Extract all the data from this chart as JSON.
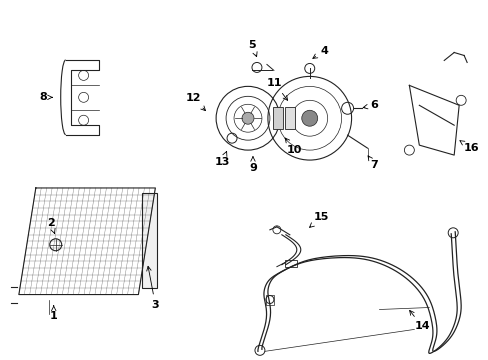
{
  "bg_color": "#ffffff",
  "line_color": "#222222",
  "label_color": "#000000",
  "figsize": [
    4.89,
    3.6
  ],
  "dpi": 100
}
